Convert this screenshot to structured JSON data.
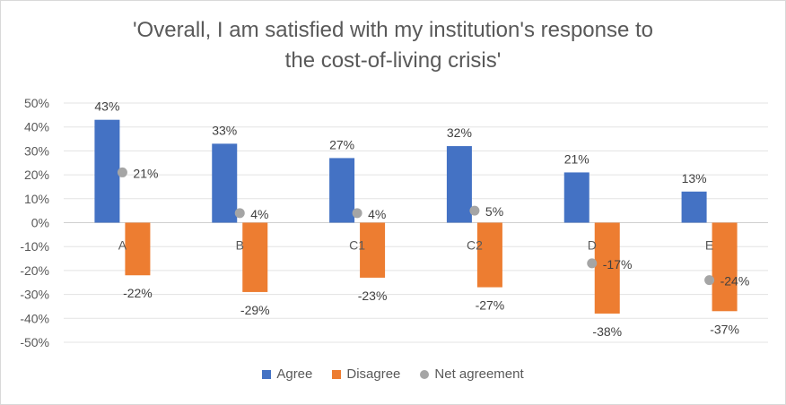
{
  "chart_data": {
    "type": "bar",
    "title": "'Overall, I am satisfied with my institution's response to the cost-of-living crisis'",
    "title_lines": [
      "'Overall, I am satisfied with my institution's response to",
      "the cost-of-living crisis'"
    ],
    "categories": [
      "A",
      "B",
      "C1",
      "C2",
      "D",
      "E"
    ],
    "series": [
      {
        "name": "Agree",
        "kind": "bar",
        "color": "#4472C4",
        "values": [
          43,
          33,
          27,
          32,
          21,
          13
        ],
        "labels": [
          "43%",
          "33%",
          "27%",
          "32%",
          "21%",
          "13%"
        ]
      },
      {
        "name": "Disagree",
        "kind": "bar",
        "color": "#ED7D31",
        "values": [
          -22,
          -29,
          -23,
          -27,
          -38,
          -37
        ],
        "labels": [
          "-22%",
          "-29%",
          "-23%",
          "-27%",
          "-38%",
          "-37%"
        ]
      },
      {
        "name": "Net agreement",
        "kind": "marker",
        "color": "#A5A5A5",
        "values": [
          21,
          4,
          4,
          5,
          -17,
          -24
        ],
        "labels": [
          "21%",
          "4%",
          "4%",
          "5%",
          "-17%",
          "-24%"
        ]
      }
    ],
    "ylim": [
      -50,
      50
    ],
    "yticks": [
      50,
      40,
      30,
      20,
      10,
      0,
      -10,
      -20,
      -30,
      -40,
      -50
    ],
    "ytick_labels": [
      "50%",
      "40%",
      "30%",
      "20%",
      "10%",
      "0%",
      "-10%",
      "-20%",
      "-30%",
      "-40%",
      "-50%"
    ],
    "grid": true,
    "legend_position": "bottom"
  }
}
